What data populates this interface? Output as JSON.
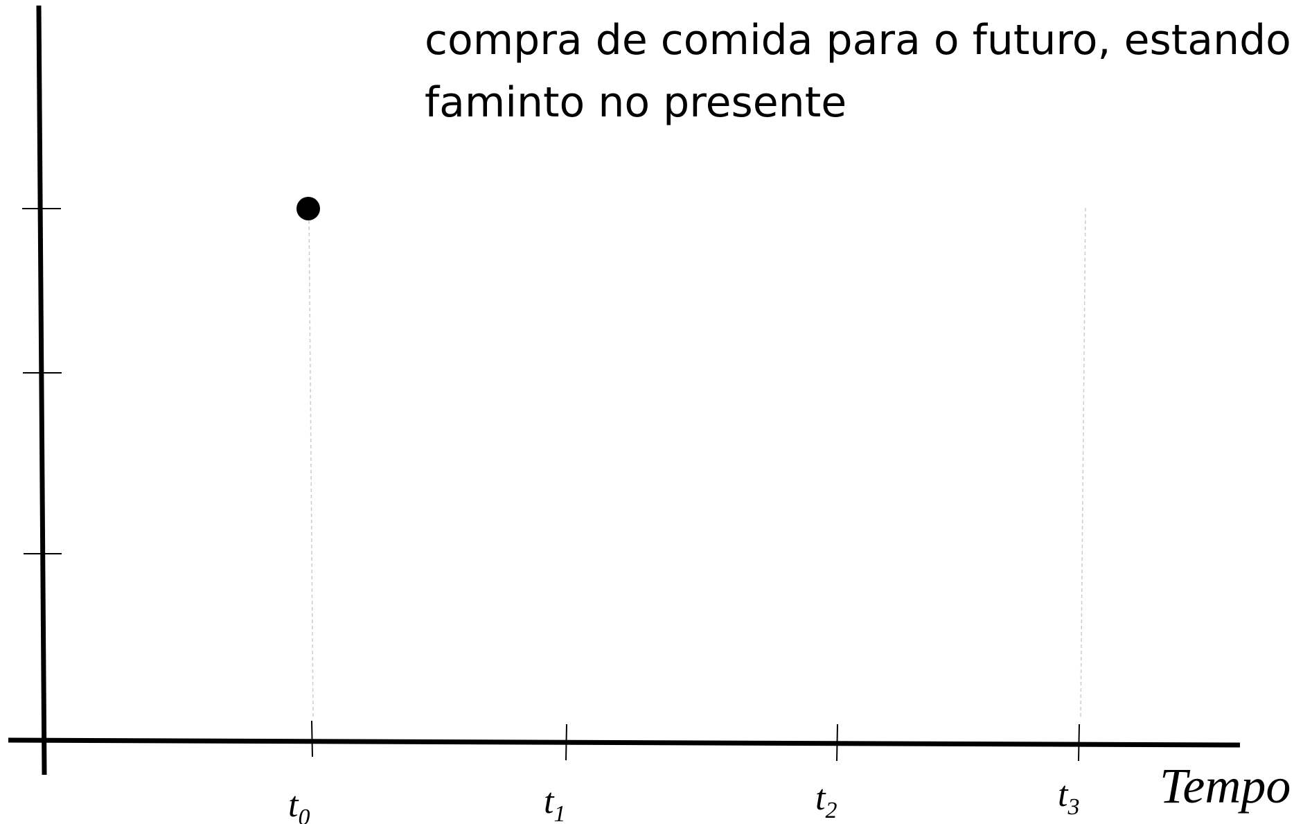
{
  "chart_data": {
    "type": "scatter",
    "caption_lines": [
      "compra de comida para o futuro, estando",
      "faminto no presente"
    ],
    "xlabel": "Tempo",
    "ylabel": "",
    "x_ticks": [
      {
        "base": "t",
        "sub": "0"
      },
      {
        "base": "t",
        "sub": "1"
      },
      {
        "base": "t",
        "sub": "2"
      },
      {
        "base": "t",
        "sub": "3"
      }
    ],
    "y_tick_count": 3,
    "points": [
      {
        "x": "t0",
        "y_level": 3
      }
    ],
    "guide_lines_at": [
      "t0",
      "t3"
    ],
    "grid": false,
    "colors": {
      "axis": "#000000",
      "point": "#000000",
      "guide": "#cccccc"
    }
  }
}
